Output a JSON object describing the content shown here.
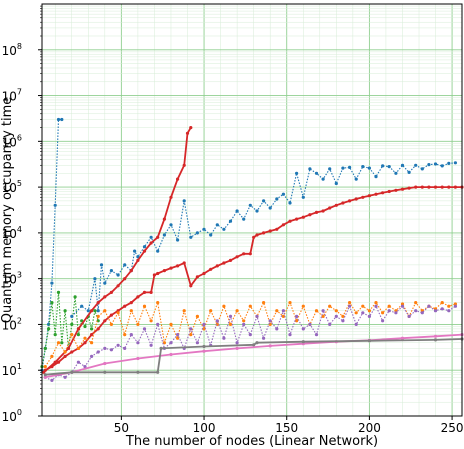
{
  "chart_data": {
    "type": "line",
    "title": "",
    "xlabel": "The number of nodes (Linear Network)",
    "ylabel": "Quantum memory occupancy time",
    "xlim": [
      2,
      256
    ],
    "ylim": [
      1,
      1000000000
    ],
    "yscale": "log",
    "grid": true,
    "legend": "none",
    "x_ticks": [
      {
        "value": 50,
        "label": "50"
      },
      {
        "value": 100,
        "label": "100"
      },
      {
        "value": 150,
        "label": "150"
      },
      {
        "value": 200,
        "label": "200"
      },
      {
        "value": 250,
        "label": "250"
      }
    ],
    "y_ticks": [
      {
        "value": 1,
        "base": "10",
        "exp": "0"
      },
      {
        "value": 10,
        "base": "10",
        "exp": "1"
      },
      {
        "value": 100,
        "base": "10",
        "exp": "2"
      },
      {
        "value": 1000,
        "base": "10",
        "exp": "3"
      },
      {
        "value": 10000,
        "base": "10",
        "exp": "4"
      },
      {
        "value": 100000,
        "base": "10",
        "exp": "5"
      },
      {
        "value": 1000000,
        "base": "10",
        "exp": "6"
      },
      {
        "value": 10000000,
        "base": "10",
        "exp": "7"
      },
      {
        "value": 100000000,
        "base": "10",
        "exp": "8"
      }
    ],
    "series": [
      {
        "color": "#1f77b4",
        "linestyle": "dotted",
        "marker": "dot",
        "x": [
          2,
          4,
          6,
          8,
          10,
          12,
          14
        ],
        "y": [
          10,
          30,
          100,
          800,
          40000,
          3000000,
          3000000
        ]
      },
      {
        "color": "#2ca02c",
        "linestyle": "dotted",
        "marker": "dot",
        "x": [
          2,
          4,
          6,
          8,
          10,
          12,
          14,
          16,
          18,
          20,
          22,
          24,
          26,
          28,
          30,
          32,
          34,
          36
        ],
        "y": [
          12,
          30,
          80,
          300,
          60,
          500,
          40,
          200,
          30,
          100,
          400,
          60,
          120,
          90,
          150,
          80,
          200,
          120
        ]
      },
      {
        "color": "#1f77b4",
        "linestyle": "dotted",
        "marker": "dot",
        "x": [
          20,
          26,
          30,
          34,
          36,
          38,
          40,
          44,
          48,
          52,
          56,
          58,
          60,
          64,
          68,
          72,
          76,
          80,
          84,
          88,
          92,
          96,
          100,
          104,
          108,
          112,
          116,
          120,
          124,
          128,
          132,
          136,
          140,
          144,
          148,
          152,
          156,
          160,
          164,
          168,
          172,
          176,
          180,
          184,
          188,
          192,
          196,
          200,
          204,
          208,
          212,
          216,
          220,
          224,
          228,
          232,
          236,
          240,
          244,
          248,
          252
        ],
        "y": [
          150,
          250,
          200,
          1000,
          200,
          2000,
          800,
          1500,
          1200,
          2000,
          1500,
          4000,
          3000,
          5000,
          8000,
          4000,
          9000,
          15000,
          7000,
          50000,
          8000,
          10000,
          12000,
          9000,
          15000,
          12000,
          18000,
          30000,
          20000,
          40000,
          30000,
          50000,
          35000,
          55000,
          70000,
          45000,
          200000,
          60000,
          250000,
          200000,
          150000,
          250000,
          120000,
          260000,
          270000,
          150000,
          280000,
          260000,
          170000,
          290000,
          280000,
          200000,
          300000,
          210000,
          300000,
          250000,
          310000,
          320000,
          290000,
          330000,
          340000
        ]
      },
      {
        "color": "#d62728",
        "linestyle": "solid",
        "marker": "dot",
        "x": [
          3,
          10,
          18,
          24,
          32,
          36,
          40,
          44,
          48,
          52,
          56,
          60,
          64,
          68,
          72,
          76,
          80,
          84,
          88,
          90,
          92
        ],
        "y": [
          9,
          15,
          30,
          80,
          200,
          300,
          400,
          500,
          700,
          1000,
          1500,
          2500,
          4000,
          6000,
          8000,
          20000,
          60000,
          150000,
          300000,
          1500000,
          2000000
        ]
      },
      {
        "color": "#d62728",
        "linestyle": "solid",
        "marker": "dot",
        "x": [
          4,
          8,
          12,
          16,
          20,
          24,
          28,
          32,
          36,
          40,
          44,
          48,
          52,
          56,
          60,
          64,
          68,
          70,
          72,
          76,
          80,
          84,
          88,
          92,
          96,
          100,
          104,
          108,
          112,
          116,
          120,
          124,
          128,
          130,
          132,
          136,
          140,
          144,
          148,
          152,
          156,
          160,
          164,
          168,
          172,
          176,
          180,
          184,
          188,
          192,
          196,
          200,
          204,
          208,
          212,
          216,
          220,
          224,
          228,
          232,
          236,
          240,
          244,
          248,
          252,
          256
        ],
        "y": [
          10,
          12,
          15,
          20,
          25,
          30,
          40,
          60,
          80,
          120,
          160,
          200,
          250,
          300,
          400,
          500,
          500,
          1200,
          1300,
          1500,
          1700,
          1900,
          2200,
          700,
          1100,
          1300,
          1600,
          1900,
          2200,
          2500,
          3000,
          3500,
          3500,
          8000,
          9000,
          10000,
          11000,
          12000,
          15000,
          18000,
          20000,
          22000,
          25000,
          28000,
          30000,
          35000,
          40000,
          45000,
          50000,
          55000,
          60000,
          65000,
          70000,
          75000,
          80000,
          85000,
          90000,
          95000,
          100000,
          100000,
          100000,
          100000,
          100000,
          100000,
          100000,
          100000
        ]
      },
      {
        "color": "#ff7f0e",
        "linestyle": "dotted",
        "marker": "dot",
        "x": [
          4,
          8,
          12,
          16,
          20,
          24,
          28,
          32,
          36,
          40,
          44,
          48,
          52,
          56,
          60,
          64,
          68,
          72,
          76,
          80,
          84,
          88,
          92,
          96,
          100,
          104,
          108,
          112,
          116,
          120,
          124,
          128,
          132,
          136,
          140,
          144,
          148,
          152,
          156,
          160,
          164,
          168,
          172,
          176,
          180,
          184,
          188,
          192,
          196,
          200,
          204,
          208,
          212,
          216,
          220,
          224,
          228,
          232,
          236,
          240,
          244,
          248,
          252
        ],
        "y": [
          12,
          20,
          40,
          25,
          60,
          30,
          50,
          40,
          150,
          200,
          100,
          180,
          60,
          200,
          100,
          250,
          120,
          300,
          40,
          100,
          50,
          200,
          60,
          150,
          80,
          200,
          100,
          250,
          100,
          200,
          120,
          250,
          150,
          300,
          100,
          200,
          150,
          300,
          120,
          250,
          100,
          200,
          150,
          250,
          200,
          150,
          300,
          180,
          250,
          200,
          300,
          180,
          250,
          200,
          280,
          150,
          300,
          200,
          250,
          220,
          300,
          250,
          280
        ]
      },
      {
        "color": "#9467bd",
        "linestyle": "dotted",
        "marker": "dot",
        "x": [
          4,
          8,
          12,
          16,
          20,
          24,
          28,
          32,
          36,
          40,
          44,
          48,
          52,
          56,
          60,
          64,
          68,
          72,
          76,
          80,
          84,
          88,
          92,
          96,
          100,
          104,
          108,
          112,
          116,
          120,
          124,
          128,
          132,
          136,
          140,
          144,
          148,
          152,
          156,
          160,
          164,
          168,
          172,
          176,
          180,
          184,
          188,
          192,
          196,
          200,
          204,
          208,
          212,
          216,
          220,
          224,
          228,
          232,
          236,
          240,
          244,
          248,
          252
        ],
        "y": [
          7,
          6,
          8,
          7,
          9,
          15,
          12,
          20,
          25,
          30,
          28,
          35,
          30,
          60,
          40,
          80,
          35,
          100,
          30,
          40,
          60,
          30,
          80,
          40,
          100,
          35,
          120,
          50,
          150,
          40,
          100,
          60,
          150,
          50,
          120,
          80,
          200,
          60,
          150,
          80,
          100,
          60,
          200,
          100,
          150,
          120,
          250,
          100,
          180,
          150,
          250,
          120,
          200,
          180,
          250,
          150,
          200,
          180,
          250,
          200,
          220,
          200,
          250
        ]
      },
      {
        "color": "#e377c2",
        "linestyle": "solid",
        "marker": "dot",
        "x": [
          4,
          20,
          40,
          60,
          80,
          100,
          120,
          140,
          160,
          180,
          200,
          220,
          240,
          256
        ],
        "y": [
          7,
          9,
          14,
          18,
          22,
          26,
          30,
          34,
          38,
          42,
          45,
          50,
          55,
          60
        ]
      },
      {
        "color": "#7f7f7f",
        "linestyle": "solid",
        "marker": "dot",
        "x": [
          4,
          20,
          40,
          60,
          72,
          74,
          100,
          130,
          132,
          160,
          200,
          240,
          256
        ],
        "y": [
          8,
          9,
          9,
          9,
          9,
          30,
          33,
          36,
          40,
          42,
          44,
          46,
          48
        ]
      }
    ]
  }
}
